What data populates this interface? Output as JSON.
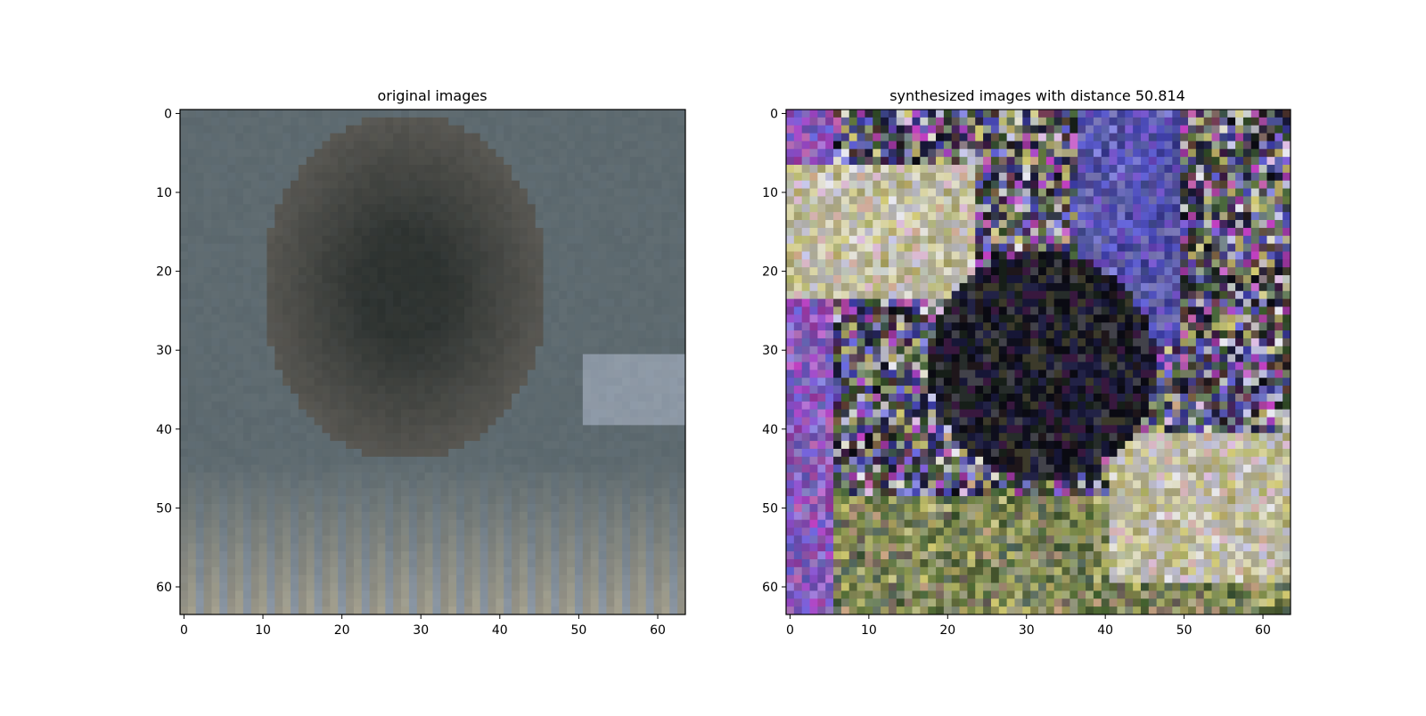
{
  "figure": {
    "background": "#ffffff"
  },
  "chart_data": [
    {
      "type": "image",
      "title": "original images",
      "xlabel": "",
      "ylabel": "",
      "xlim": [
        -0.5,
        63.5
      ],
      "ylim": [
        63.5,
        -0.5
      ],
      "x_ticks": [
        0,
        10,
        20,
        30,
        40,
        50,
        60
      ],
      "y_ticks": [
        0,
        10,
        20,
        30,
        40,
        50,
        60
      ],
      "image_size": [
        64,
        64
      ],
      "palette": [
        "#5d6a70",
        "#4e5a60",
        "#3b3f3c",
        "#2c312f",
        "#6a6660",
        "#8a7a68",
        "#9a9688",
        "#a9a592",
        "#8e9aa8",
        "#7a6a5e"
      ],
      "description_colors": {
        "background": "#5f6d73",
        "foreground": "#3a3e3b"
      }
    },
    {
      "type": "image",
      "title": "synthesized images with distance 50.814",
      "xlabel": "",
      "ylabel": "",
      "xlim": [
        -0.5,
        63.5
      ],
      "ylim": [
        63.5,
        -0.5
      ],
      "x_ticks": [
        0,
        10,
        20,
        30,
        40,
        50,
        60
      ],
      "y_ticks": [
        0,
        10,
        20,
        30,
        40,
        50,
        60
      ],
      "image_size": [
        64,
        64
      ],
      "palette": [
        "#0a0a12",
        "#1a1a3a",
        "#3a3aa0",
        "#6a6ae0",
        "#e8e8f0",
        "#d0c870",
        "#3a5a2a",
        "#c040c0",
        "#5a3a30",
        "#7a9070"
      ],
      "description_colors": {
        "background": "#101018",
        "foreground": "#e8e0e8"
      }
    }
  ]
}
